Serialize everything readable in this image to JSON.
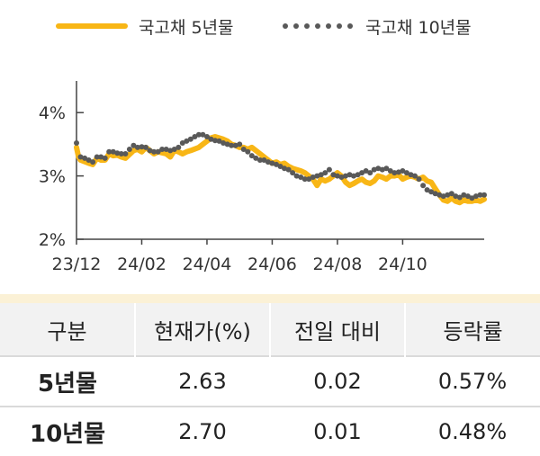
{
  "legend": {
    "series1": "국고채 5년물",
    "series2": "국고채 10년물"
  },
  "colors": {
    "series1": "#F8B616",
    "series2": "#595959"
  },
  "chart_data": {
    "type": "line",
    "ylim": [
      2,
      4.5
    ],
    "yticks": [
      "2%",
      "3%",
      "4%"
    ],
    "ytick_values": [
      2,
      3,
      4
    ],
    "xtick_labels": [
      "23/12",
      "24/02",
      "24/04",
      "24/06",
      "24/08",
      "24/10"
    ],
    "xlim": [
      0,
      100
    ],
    "xtick_positions": [
      0,
      16,
      32,
      48,
      64,
      80
    ],
    "grid": false,
    "legend_position": "top",
    "series": [
      {
        "name": "국고채 5년물",
        "style": "solid",
        "x": [
          0,
          0.5,
          1,
          3,
          4,
          5,
          6,
          7,
          8,
          9,
          10,
          11,
          12,
          14,
          15,
          16,
          17,
          18,
          19,
          20,
          22,
          23,
          24,
          25,
          26,
          27,
          28,
          30,
          31,
          32,
          33,
          34,
          35,
          36,
          37,
          38,
          39,
          40,
          41,
          42,
          43,
          44,
          45,
          46,
          47,
          48,
          49,
          50,
          51,
          52,
          53,
          54,
          55,
          56,
          57,
          58,
          59,
          60,
          61,
          62,
          63,
          64,
          65,
          66,
          67,
          68,
          69,
          70,
          71,
          72,
          73,
          74,
          75,
          76,
          77,
          78,
          79,
          80,
          81,
          82,
          83,
          84,
          85,
          86,
          87,
          88,
          89,
          90,
          91,
          92,
          93,
          94,
          95,
          96,
          97,
          98,
          99,
          100
        ],
        "values": [
          3.45,
          3.3,
          3.25,
          3.2,
          3.18,
          3.28,
          3.25,
          3.25,
          3.35,
          3.32,
          3.33,
          3.3,
          3.28,
          3.4,
          3.42,
          3.38,
          3.45,
          3.4,
          3.35,
          3.38,
          3.35,
          3.3,
          3.4,
          3.38,
          3.35,
          3.38,
          3.4,
          3.45,
          3.5,
          3.55,
          3.6,
          3.62,
          3.6,
          3.58,
          3.55,
          3.5,
          3.48,
          3.45,
          3.45,
          3.42,
          3.45,
          3.4,
          3.35,
          3.3,
          3.25,
          3.2,
          3.22,
          3.18,
          3.2,
          3.15,
          3.12,
          3.1,
          3.08,
          3.05,
          3.0,
          2.95,
          2.85,
          2.95,
          2.92,
          2.95,
          3.0,
          3.05,
          3.0,
          2.9,
          2.85,
          2.88,
          2.92,
          2.95,
          2.9,
          2.88,
          2.92,
          3.0,
          2.98,
          2.95,
          3.0,
          3.0,
          3.02,
          2.95,
          2.98,
          3.0,
          2.98,
          2.95,
          2.98,
          2.92,
          2.9,
          2.8,
          2.7,
          2.62,
          2.6,
          2.65,
          2.6,
          2.58,
          2.62,
          2.6,
          2.6,
          2.62,
          2.6,
          2.63
        ]
      },
      {
        "name": "국고채 10년물",
        "style": "dotted",
        "x": [
          0,
          1,
          2,
          3,
          4,
          5,
          6,
          7,
          8,
          9,
          10,
          11,
          12,
          13,
          14,
          15,
          16,
          17,
          18,
          19,
          20,
          21,
          22,
          23,
          24,
          25,
          26,
          27,
          28,
          29,
          30,
          31,
          32,
          33,
          34,
          35,
          36,
          37,
          38,
          39,
          40,
          41,
          42,
          43,
          44,
          45,
          46,
          47,
          48,
          49,
          50,
          51,
          52,
          53,
          54,
          55,
          56,
          57,
          58,
          59,
          60,
          61,
          62,
          63,
          64,
          65,
          66,
          67,
          68,
          69,
          70,
          71,
          72,
          73,
          74,
          75,
          76,
          77,
          78,
          79,
          80,
          81,
          82,
          83,
          84,
          85,
          86,
          87,
          88,
          89,
          90,
          91,
          92,
          93,
          94,
          95,
          96,
          97,
          98,
          99,
          100
        ],
        "values": [
          3.52,
          3.3,
          3.28,
          3.25,
          3.22,
          3.3,
          3.3,
          3.28,
          3.38,
          3.38,
          3.36,
          3.35,
          3.35,
          3.42,
          3.48,
          3.45,
          3.46,
          3.45,
          3.4,
          3.38,
          3.38,
          3.42,
          3.42,
          3.4,
          3.42,
          3.45,
          3.52,
          3.55,
          3.58,
          3.62,
          3.65,
          3.65,
          3.62,
          3.58,
          3.56,
          3.55,
          3.52,
          3.5,
          3.48,
          3.48,
          3.5,
          3.42,
          3.38,
          3.32,
          3.28,
          3.25,
          3.25,
          3.22,
          3.2,
          3.18,
          3.15,
          3.12,
          3.1,
          3.05,
          3.0,
          2.98,
          2.95,
          2.95,
          2.98,
          3.0,
          3.02,
          3.05,
          3.1,
          3.02,
          3.0,
          2.98,
          3.0,
          3.02,
          3.0,
          3.02,
          3.05,
          3.08,
          3.05,
          3.1,
          3.12,
          3.1,
          3.12,
          3.08,
          3.05,
          3.06,
          3.08,
          3.05,
          3.02,
          3.0,
          2.95,
          2.85,
          2.78,
          2.75,
          2.72,
          2.7,
          2.68,
          2.7,
          2.72,
          2.68,
          2.66,
          2.7,
          2.68,
          2.65,
          2.68,
          2.7,
          2.7
        ]
      }
    ]
  },
  "table": {
    "headers": [
      "구분",
      "현재가(%)",
      "전일 대비",
      "등락률"
    ],
    "rows": [
      {
        "label": "5년물",
        "price": "2.63",
        "change": "0.02",
        "rate": "0.57%"
      },
      {
        "label": "10년물",
        "price": "2.70",
        "change": "0.01",
        "rate": "0.48%"
      }
    ]
  }
}
